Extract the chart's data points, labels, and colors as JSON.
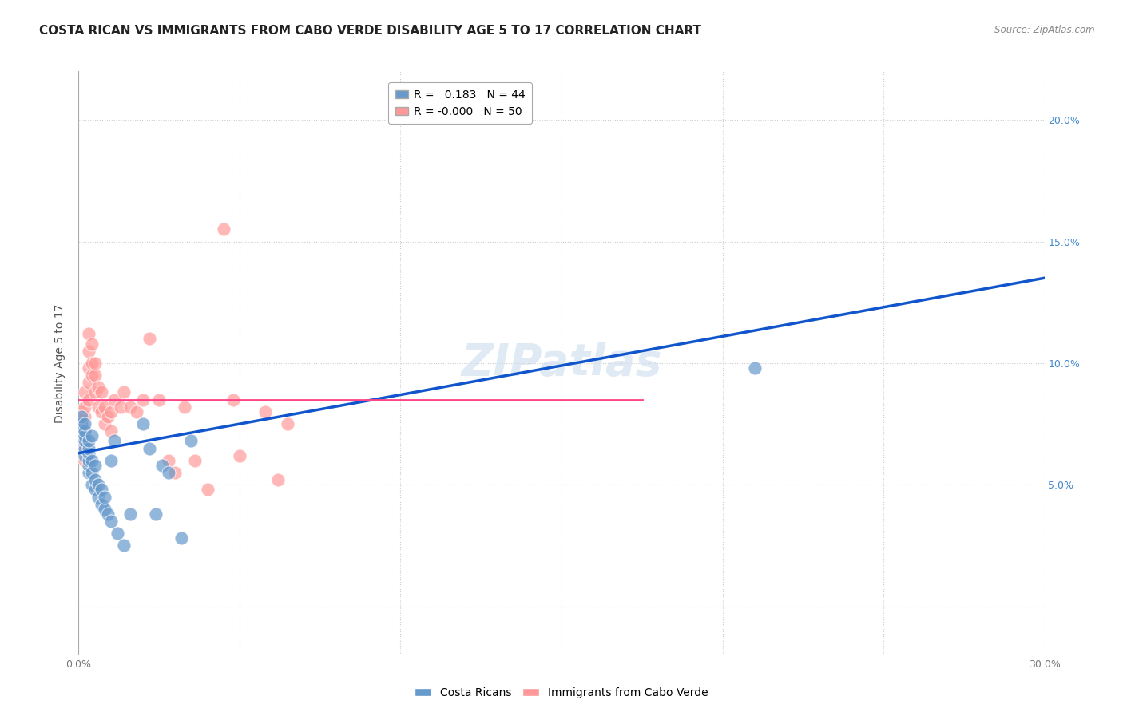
{
  "title": "COSTA RICAN VS IMMIGRANTS FROM CABO VERDE DISABILITY AGE 5 TO 17 CORRELATION CHART",
  "source": "Source: ZipAtlas.com",
  "ylabel": "Disability Age 5 to 17",
  "xlim": [
    0.0,
    0.3
  ],
  "ylim": [
    -0.02,
    0.22
  ],
  "xticks": [
    0.0,
    0.05,
    0.1,
    0.15,
    0.2,
    0.25,
    0.3
  ],
  "yticks": [
    0.0,
    0.05,
    0.1,
    0.15,
    0.2
  ],
  "blue_R": "0.183",
  "blue_N": "44",
  "pink_R": "-0.000",
  "pink_N": "50",
  "watermark": "ZIPatlas",
  "blue_scatter_x": [
    0.001,
    0.001,
    0.001,
    0.001,
    0.002,
    0.002,
    0.002,
    0.002,
    0.002,
    0.002,
    0.003,
    0.003,
    0.003,
    0.003,
    0.003,
    0.003,
    0.004,
    0.004,
    0.004,
    0.004,
    0.005,
    0.005,
    0.005,
    0.006,
    0.006,
    0.007,
    0.007,
    0.008,
    0.008,
    0.009,
    0.01,
    0.01,
    0.011,
    0.012,
    0.014,
    0.016,
    0.02,
    0.022,
    0.024,
    0.026,
    0.028,
    0.032,
    0.035,
    0.21
  ],
  "blue_scatter_y": [
    0.07,
    0.072,
    0.075,
    0.078,
    0.062,
    0.065,
    0.068,
    0.07,
    0.072,
    0.075,
    0.055,
    0.058,
    0.06,
    0.063,
    0.065,
    0.068,
    0.05,
    0.055,
    0.06,
    0.07,
    0.048,
    0.052,
    0.058,
    0.045,
    0.05,
    0.042,
    0.048,
    0.04,
    0.045,
    0.038,
    0.035,
    0.06,
    0.068,
    0.03,
    0.025,
    0.038,
    0.075,
    0.065,
    0.038,
    0.058,
    0.055,
    0.028,
    0.068,
    0.098
  ],
  "pink_scatter_x": [
    0.001,
    0.001,
    0.001,
    0.001,
    0.002,
    0.002,
    0.002,
    0.002,
    0.002,
    0.002,
    0.002,
    0.003,
    0.003,
    0.003,
    0.003,
    0.003,
    0.004,
    0.004,
    0.004,
    0.005,
    0.005,
    0.005,
    0.006,
    0.006,
    0.007,
    0.007,
    0.008,
    0.008,
    0.009,
    0.01,
    0.01,
    0.011,
    0.013,
    0.014,
    0.016,
    0.018,
    0.02,
    0.022,
    0.025,
    0.028,
    0.03,
    0.033,
    0.036,
    0.04,
    0.045,
    0.048,
    0.05,
    0.058,
    0.062,
    0.065
  ],
  "pink_scatter_y": [
    0.07,
    0.072,
    0.075,
    0.08,
    0.06,
    0.065,
    0.068,
    0.072,
    0.078,
    0.082,
    0.088,
    0.085,
    0.092,
    0.098,
    0.105,
    0.112,
    0.095,
    0.1,
    0.108,
    0.088,
    0.095,
    0.1,
    0.082,
    0.09,
    0.08,
    0.088,
    0.075,
    0.082,
    0.078,
    0.072,
    0.08,
    0.085,
    0.082,
    0.088,
    0.082,
    0.08,
    0.085,
    0.11,
    0.085,
    0.06,
    0.055,
    0.082,
    0.06,
    0.048,
    0.155,
    0.085,
    0.062,
    0.08,
    0.052,
    0.075
  ],
  "blue_line_x": [
    0.0,
    0.3
  ],
  "blue_line_y": [
    0.063,
    0.135
  ],
  "pink_line_x": [
    0.0,
    0.175
  ],
  "pink_line_y": [
    0.085,
    0.085
  ],
  "blue_color": "#6699CC",
  "pink_color": "#FF9999",
  "blue_line_color": "#1155CC",
  "pink_line_color": "#FF4488",
  "background_color": "#FFFFFF",
  "grid_color": "#CCCCCC",
  "title_fontsize": 11,
  "axis_label_fontsize": 10,
  "tick_fontsize": 9,
  "legend_fontsize": 10,
  "watermark_fontsize": 40,
  "watermark_color": "#CCDDEE",
  "tick_color_x": "#777777",
  "tick_color_y": "#4488CC"
}
